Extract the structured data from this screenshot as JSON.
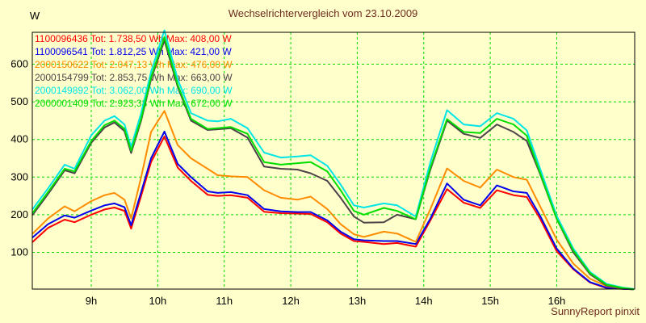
{
  "window": {
    "title": "Wechselrichtervergleich vom 23.10.2009",
    "footer": "SunnyReport pinxit"
  },
  "colors": {
    "background": "#FFFFCC",
    "plot_border": "#000000",
    "grid": "#00DC00",
    "axis_text": "#000000",
    "title_text": "#6E2A1E",
    "footer_text": "#6E2A1E"
  },
  "chart_data": {
    "type": "line",
    "title": "Wechselrichtervergleich vom 23.10.2009",
    "xlabel": "",
    "ylabel": "W",
    "grid": true,
    "legend_position": "top-left",
    "x_range": [
      8.12,
      17.17
    ],
    "y_range": [
      0,
      685
    ],
    "x_ticks": [
      {
        "v": 9,
        "label": "9h"
      },
      {
        "v": 10,
        "label": "10h"
      },
      {
        "v": 11,
        "label": "11h"
      },
      {
        "v": 12,
        "label": "12h"
      },
      {
        "v": 13,
        "label": "13h"
      },
      {
        "v": 14,
        "label": "14h"
      },
      {
        "v": 15,
        "label": "15h"
      },
      {
        "v": 16,
        "label": "16h"
      }
    ],
    "y_ticks": [
      {
        "v": 100,
        "label": "100"
      },
      {
        "v": 200,
        "label": "200"
      },
      {
        "v": 300,
        "label": "300"
      },
      {
        "v": 400,
        "label": "400"
      },
      {
        "v": 500,
        "label": "500"
      },
      {
        "v": 600,
        "label": "600"
      }
    ],
    "x_hours": [
      8.12,
      8.35,
      8.6,
      8.75,
      9.0,
      9.2,
      9.35,
      9.5,
      9.6,
      9.75,
      9.9,
      10.1,
      10.3,
      10.5,
      10.75,
      10.9,
      11.1,
      11.35,
      11.6,
      11.85,
      12.1,
      12.3,
      12.55,
      12.75,
      12.95,
      13.1,
      13.4,
      13.6,
      13.88,
      14.1,
      14.35,
      14.6,
      14.85,
      15.1,
      15.35,
      15.55,
      15.75,
      16.0,
      16.25,
      16.5,
      16.75,
      17.0,
      17.15
    ],
    "series": [
      {
        "id": "1100096436",
        "total_wh": "1.738,50 Wh",
        "max_w": "408,00 W",
        "legend_text": "1100096436 Tot: 1.738,50 Wh Max: 408,00 W",
        "color": "#FF0000",
        "values": [
          128,
          165,
          187,
          180,
          200,
          214,
          219,
          210,
          163,
          250,
          340,
          408,
          325,
          290,
          253,
          250,
          252,
          245,
          208,
          204,
          203,
          202,
          180,
          150,
          130,
          128,
          122,
          125,
          115,
          185,
          268,
          232,
          218,
          265,
          252,
          247,
          189,
          103,
          55,
          20,
          5,
          3,
          2
        ]
      },
      {
        "id": "1100096541",
        "total_wh": "1.812,25 Wh",
        "max_w": "421,00 W",
        "legend_text": "1100096541 Tot: 1.812,25 Wh Max: 421,00 W",
        "color": "#0000EE",
        "values": [
          140,
          175,
          198,
          192,
          211,
          225,
          230,
          220,
          172,
          260,
          350,
          421,
          335,
          300,
          262,
          258,
          260,
          252,
          215,
          209,
          207,
          207,
          185,
          155,
          135,
          132,
          130,
          130,
          122,
          190,
          283,
          240,
          225,
          278,
          262,
          258,
          197,
          110,
          57,
          21,
          6,
          3,
          2
        ]
      },
      {
        "id": "2000150622",
        "total_wh": "2.047,13 Wh",
        "max_w": "476,00 W",
        "legend_text": "2000150622 Tot: 2.047,13 Wh Max: 476,00 W",
        "color": "#FF8C00",
        "values": [
          150,
          190,
          222,
          209,
          236,
          252,
          258,
          240,
          190,
          300,
          420,
          476,
          385,
          350,
          322,
          305,
          302,
          300,
          265,
          245,
          240,
          248,
          215,
          175,
          148,
          141,
          155,
          150,
          128,
          215,
          323,
          290,
          272,
          320,
          300,
          293,
          222,
          134,
          70,
          30,
          10,
          4,
          2
        ]
      },
      {
        "id": "2000154799",
        "total_wh": "2.853,75 Wh",
        "max_w": "663,00 W",
        "legend_text": "2000154799 Tot: 2.853,75 Wh Max: 663,00 W",
        "color": "#4B4349",
        "values": [
          200,
          255,
          318,
          310,
          391,
          432,
          445,
          422,
          364,
          450,
          560,
          663,
          540,
          450,
          425,
          427,
          430,
          405,
          328,
          322,
          320,
          310,
          290,
          245,
          195,
          179,
          180,
          200,
          188,
          320,
          450,
          415,
          404,
          440,
          420,
          396,
          308,
          189,
          100,
          42,
          12,
          4,
          2
        ]
      },
      {
        "id": "2000149892",
        "total_wh": "3.062,00 Wh",
        "max_w": "690,00 W",
        "legend_text": "2000149892 Tot: 3.062,00 Wh Max: 690,00 W",
        "color": "#00E5E5",
        "values": [
          215,
          270,
          333,
          322,
          411,
          450,
          462,
          440,
          381,
          470,
          580,
          690,
          560,
          470,
          450,
          448,
          455,
          430,
          365,
          352,
          355,
          358,
          330,
          280,
          225,
          219,
          230,
          225,
          195,
          340,
          478,
          440,
          435,
          470,
          455,
          424,
          322,
          197,
          110,
          48,
          16,
          6,
          3
        ]
      },
      {
        "id": "2000001409",
        "total_wh": "2.923,38 Wh",
        "max_w": "672,00 W",
        "legend_text": "2000001409 Tot: 2.923,38 Wh Max: 672,00 W",
        "color": "#00DE00",
        "values": [
          205,
          260,
          322,
          315,
          396,
          438,
          450,
          428,
          370,
          455,
          565,
          672,
          545,
          455,
          428,
          430,
          433,
          415,
          340,
          333,
          337,
          340,
          315,
          265,
          210,
          200,
          218,
          210,
          188,
          325,
          454,
          420,
          417,
          455,
          440,
          410,
          311,
          189,
          105,
          45,
          14,
          5,
          2
        ]
      }
    ]
  }
}
